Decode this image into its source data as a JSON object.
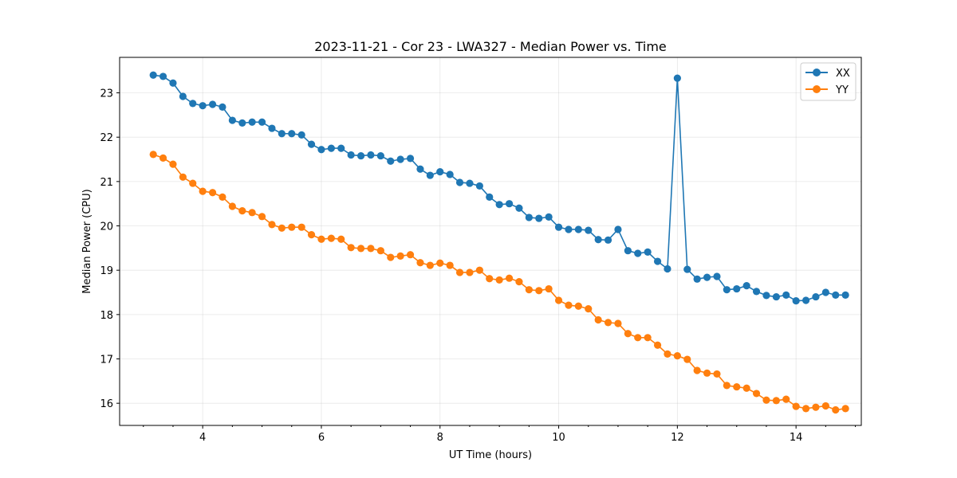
{
  "chart_data": {
    "type": "line",
    "title": "2023-11-21 - Cor 23 - LWA327 - Median Power vs. Time",
    "xlabel": "UT Time (hours)",
    "ylabel": "Median Power (CPU)",
    "xlim": [
      2.6,
      15.1
    ],
    "ylim": [
      15.5,
      23.8
    ],
    "xticks": [
      4,
      6,
      8,
      10,
      12,
      14
    ],
    "yticks": [
      16,
      17,
      18,
      19,
      20,
      21,
      22,
      23
    ],
    "grid": true,
    "legend_position": "top-right",
    "x": [
      3.167,
      3.333,
      3.5,
      3.667,
      3.833,
      4.0,
      4.167,
      4.333,
      4.5,
      4.667,
      4.833,
      5.0,
      5.167,
      5.333,
      5.5,
      5.667,
      5.833,
      6.0,
      6.167,
      6.333,
      6.5,
      6.667,
      6.833,
      7.0,
      7.167,
      7.333,
      7.5,
      7.667,
      7.833,
      8.0,
      8.167,
      8.333,
      8.5,
      8.667,
      8.833,
      9.0,
      9.167,
      9.333,
      9.5,
      9.667,
      9.833,
      10.0,
      10.167,
      10.333,
      10.5,
      10.667,
      10.833,
      11.0,
      11.167,
      11.333,
      11.5,
      11.667,
      11.833,
      12.0,
      12.167,
      12.333,
      12.5,
      12.667,
      12.833,
      13.0,
      13.167,
      13.333,
      13.5,
      13.667,
      13.833,
      14.0,
      14.167,
      14.333,
      14.5,
      14.667,
      14.833
    ],
    "series": [
      {
        "name": "XX",
        "color": "#1f77b4",
        "values": [
          23.4,
          23.37,
          23.22,
          22.92,
          22.76,
          22.71,
          22.74,
          22.68,
          22.38,
          22.32,
          22.34,
          22.34,
          22.2,
          22.08,
          22.08,
          22.05,
          21.84,
          21.72,
          21.75,
          21.75,
          21.6,
          21.58,
          21.6,
          21.58,
          21.46,
          21.5,
          21.52,
          21.28,
          21.14,
          21.22,
          21.16,
          20.98,
          20.96,
          20.9,
          20.65,
          20.48,
          20.5,
          20.4,
          20.19,
          20.17,
          20.2,
          19.97,
          19.92,
          19.92,
          19.9,
          19.69,
          19.68,
          19.92,
          19.44,
          19.38,
          19.41,
          19.2,
          19.03,
          23.33,
          19.02,
          18.8,
          18.84,
          18.86,
          18.56,
          18.58,
          18.65,
          18.52,
          18.43,
          18.4,
          18.44,
          18.31,
          18.32,
          18.4,
          18.5,
          18.44,
          18.44
        ]
      },
      {
        "name": "YY",
        "color": "#ff7f0e",
        "values": [
          21.61,
          21.53,
          21.39,
          21.1,
          20.96,
          20.78,
          20.75,
          20.65,
          20.44,
          20.34,
          20.3,
          20.21,
          20.03,
          19.95,
          19.97,
          19.97,
          19.8,
          19.7,
          19.72,
          19.7,
          19.51,
          19.49,
          19.49,
          19.44,
          19.29,
          19.32,
          19.35,
          19.17,
          19.11,
          19.16,
          19.11,
          18.95,
          18.95,
          19.0,
          18.81,
          18.78,
          18.82,
          18.74,
          18.56,
          18.54,
          18.58,
          18.32,
          18.21,
          18.19,
          18.13,
          17.88,
          17.82,
          17.8,
          17.57,
          17.48,
          17.48,
          17.31,
          17.11,
          17.07,
          16.99,
          16.74,
          16.68,
          16.66,
          16.4,
          16.37,
          16.34,
          16.22,
          16.07,
          16.06,
          16.09,
          15.93,
          15.88,
          15.91,
          15.94,
          15.85,
          15.88
        ]
      }
    ]
  }
}
